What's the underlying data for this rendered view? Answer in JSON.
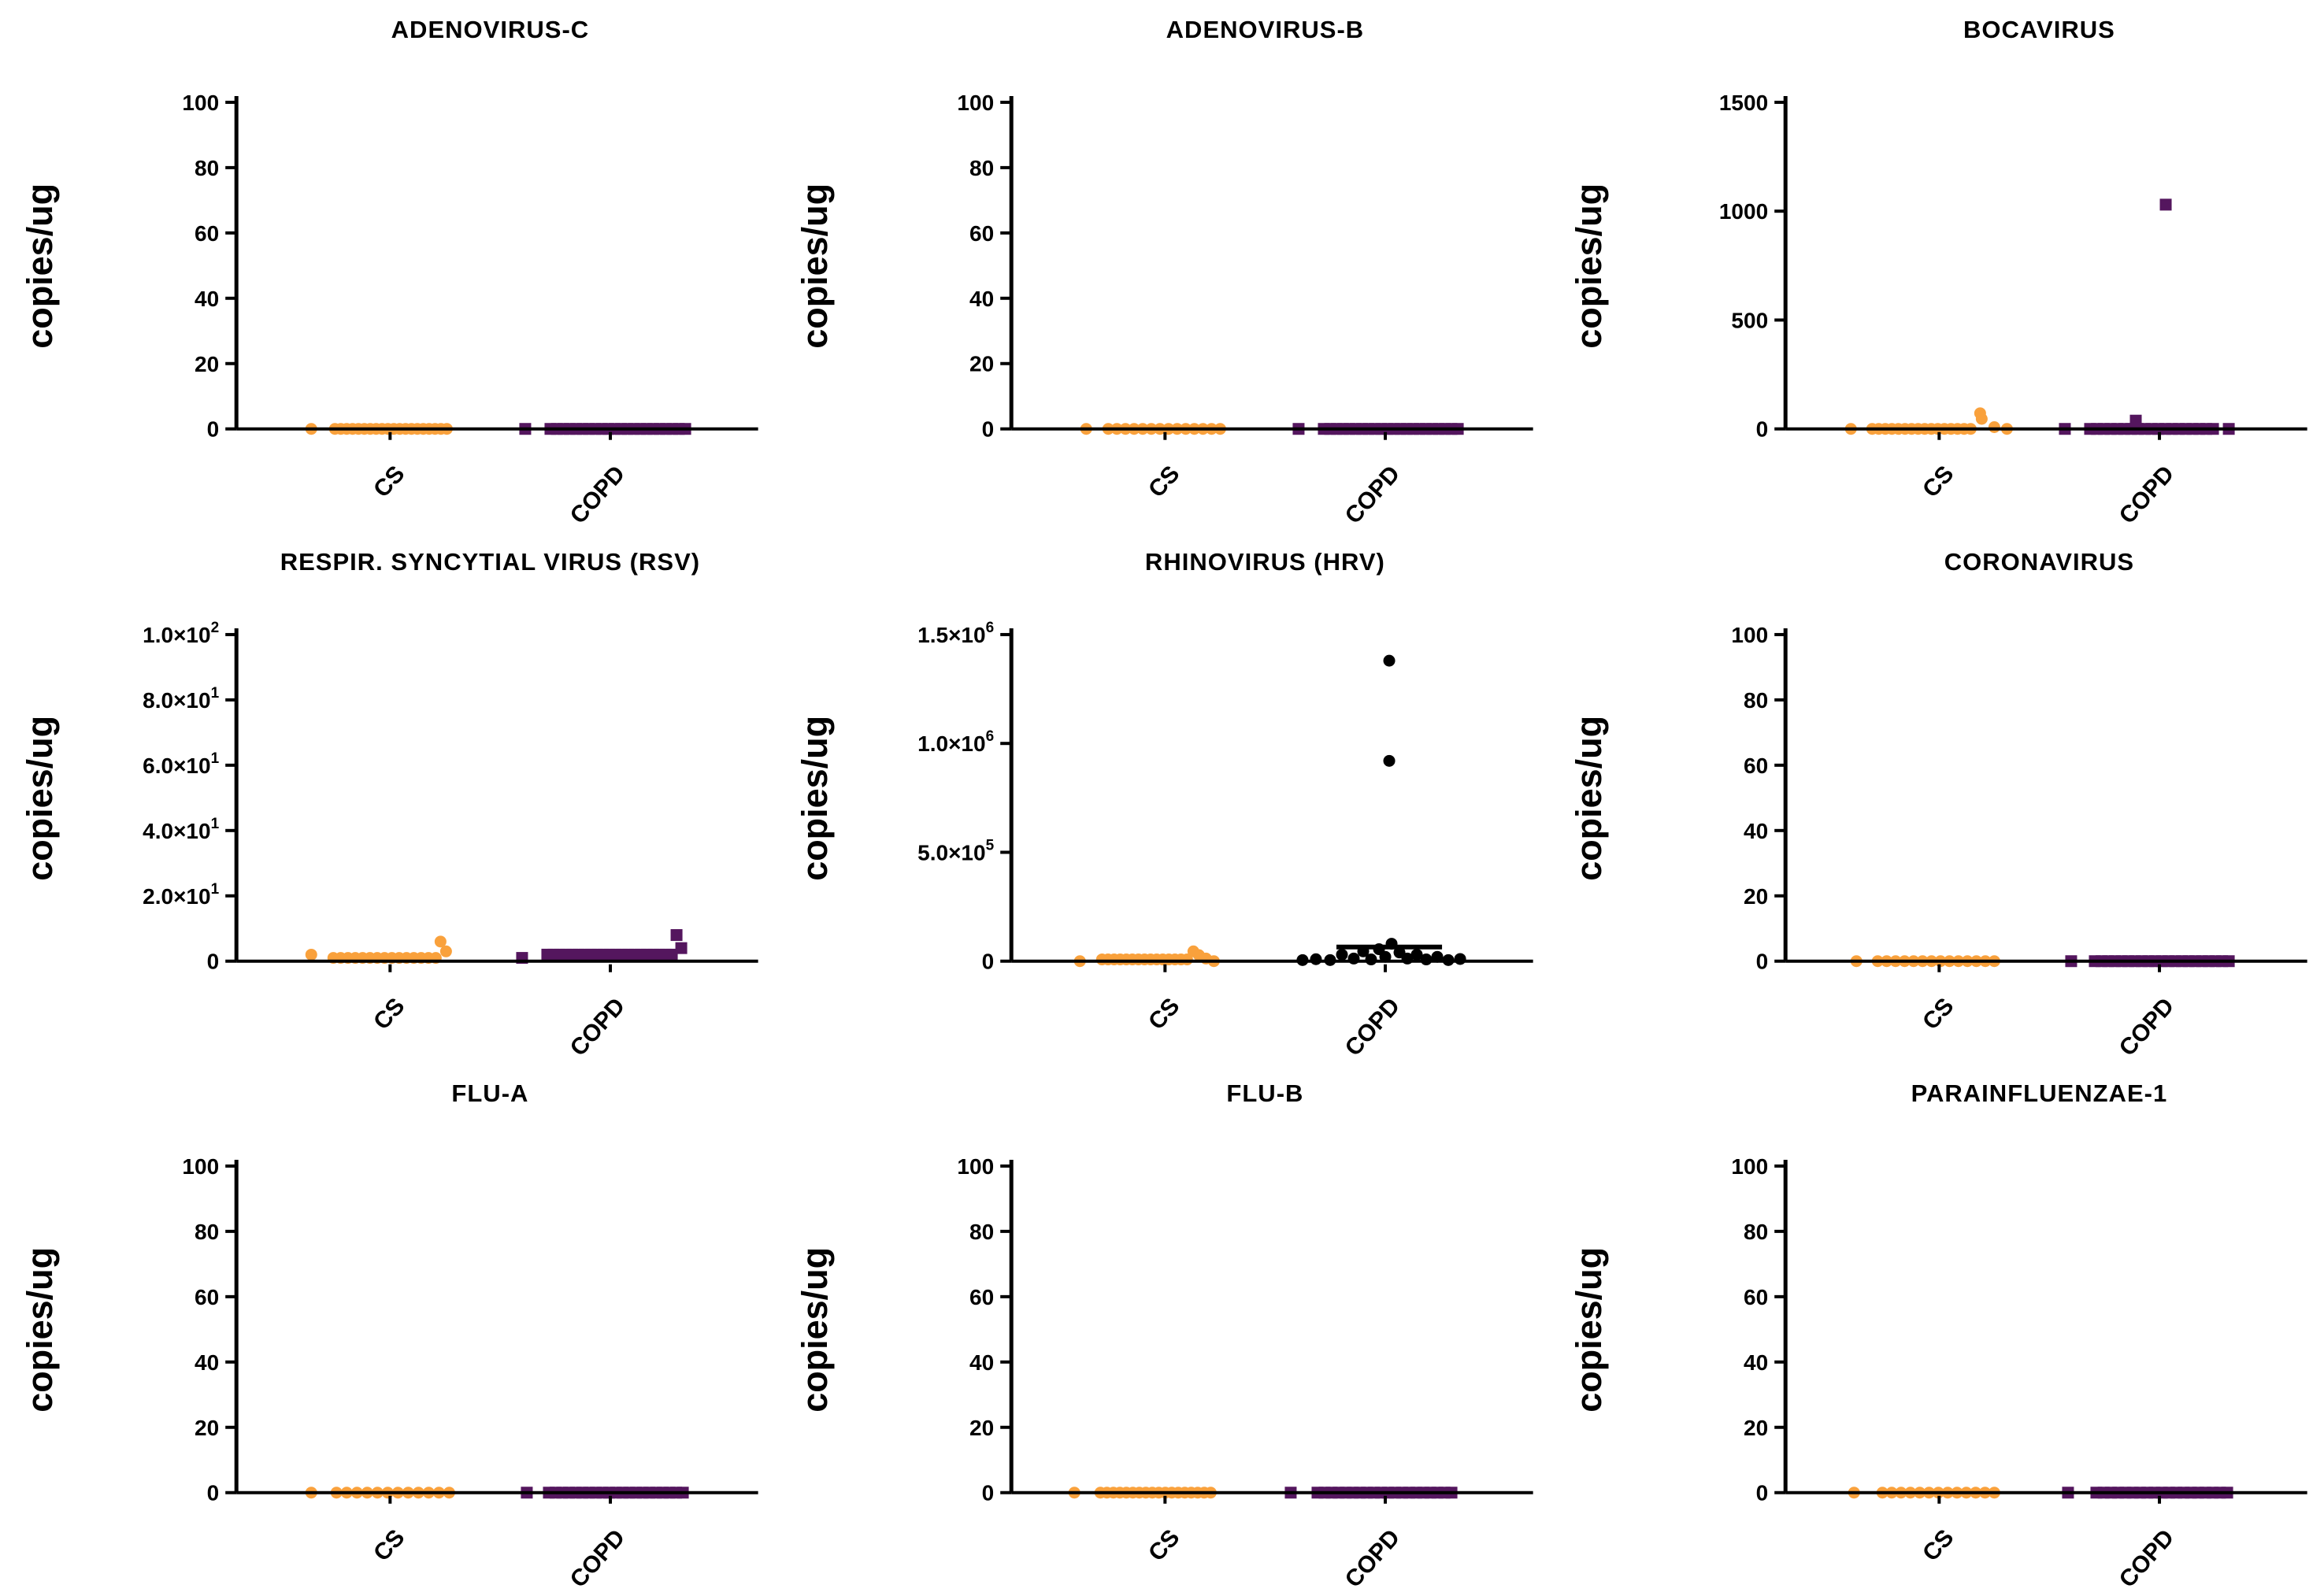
{
  "figure": {
    "background": "#ffffff",
    "grid": "3x3 panels, scatter plots of viral load by group"
  },
  "colors": {
    "cs_orange": "#F9A13C",
    "copd_purple": "#54165E",
    "hrv_copd_black": "#000000",
    "axis_black": "#000000"
  },
  "chart_data": [
    {
      "type": "scatter",
      "title": "ADENOVIRUS-C",
      "ylabel": "copies/ug",
      "xlabel": "",
      "categories": [
        "CS",
        "COPD"
      ],
      "ylim": [
        0,
        100
      ],
      "yticks": [
        {
          "v": 0,
          "label": "0"
        },
        {
          "v": 20,
          "label": "20"
        },
        {
          "v": 40,
          "label": "40"
        },
        {
          "v": 60,
          "label": "60"
        },
        {
          "v": 80,
          "label": "80"
        },
        {
          "v": 100,
          "label": "100"
        }
      ],
      "series": [
        {
          "name": "CS",
          "marker": "circle",
          "color": "#F9A13C",
          "groups": [
            {
              "pts": [
                [
                  -100,
                  0
                ]
              ]
            },
            {
              "row": {
                "n": 20,
                "from": -70,
                "to": 72,
                "y": 0
              }
            }
          ]
        },
        {
          "name": "COPD",
          "marker": "square",
          "color": "#54165E",
          "groups": [
            {
              "pts": [
                [
                  -108,
                  0
                ]
              ]
            },
            {
              "row": {
                "n": 22,
                "from": -76,
                "to": 95,
                "y": 0
              }
            }
          ]
        }
      ]
    },
    {
      "type": "scatter",
      "title": "ADENOVIRUS-B",
      "ylabel": "copies/ug",
      "xlabel": "",
      "categories": [
        "CS",
        "COPD"
      ],
      "ylim": [
        0,
        100
      ],
      "yticks": [
        {
          "v": 0,
          "label": "0"
        },
        {
          "v": 20,
          "label": "20"
        },
        {
          "v": 40,
          "label": "40"
        },
        {
          "v": 60,
          "label": "60"
        },
        {
          "v": 80,
          "label": "80"
        },
        {
          "v": 100,
          "label": "100"
        }
      ],
      "series": [
        {
          "name": "CS",
          "marker": "circle",
          "color": "#F9A13C",
          "groups": [
            {
              "pts": [
                [
                  -100,
                  0
                ]
              ]
            },
            {
              "row": {
                "n": 14,
                "from": -72,
                "to": 70,
                "y": 0
              }
            }
          ]
        },
        {
          "name": "COPD",
          "marker": "square",
          "color": "#54165E",
          "groups": [
            {
              "pts": [
                [
                  -110,
                  0
                ]
              ]
            },
            {
              "row": {
                "n": 22,
                "from": -78,
                "to": 92,
                "y": 0
              }
            }
          ]
        }
      ]
    },
    {
      "type": "scatter",
      "title": "BOCAVIRUS",
      "ylabel": "copies/ug",
      "xlabel": "",
      "categories": [
        "CS",
        "COPD"
      ],
      "ylim": [
        0,
        1500
      ],
      "yticks": [
        {
          "v": 0,
          "label": "0"
        },
        {
          "v": 500,
          "label": "500"
        },
        {
          "v": 1000,
          "label": "1000"
        },
        {
          "v": 1500,
          "label": "1500"
        }
      ],
      "series": [
        {
          "name": "CS",
          "marker": "circle",
          "color": "#F9A13C",
          "groups": [
            {
              "pts": [
                [
                  -112,
                  0
                ]
              ]
            },
            {
              "row": {
                "n": 16,
                "from": -85,
                "to": 40,
                "y": 0
              }
            },
            {
              "pts": [
                [
                  52,
                  72
                ],
                [
                  54,
                  46
                ],
                [
                  70,
                  8
                ],
                [
                  86,
                  0
                ]
              ]
            }
          ]
        },
        {
          "name": "COPD",
          "marker": "square",
          "color": "#54165E",
          "groups": [
            {
              "pts": [
                [
                  -120,
                  0
                ]
              ]
            },
            {
              "row": {
                "n": 19,
                "from": -88,
                "to": 68,
                "y": 0
              }
            },
            {
              "pts": [
                [
                  -30,
                  38
                ],
                [
                  88,
                  0
                ],
                [
                  8,
                  1030
                ]
              ]
            }
          ]
        }
      ]
    },
    {
      "type": "scatter",
      "title": "RESPIR. SYNCYTIAL VIRUS (RSV)",
      "ylabel": "copies/ug",
      "xlabel": "",
      "categories": [
        "CS",
        "COPD"
      ],
      "ylim": [
        0,
        100
      ],
      "yticks": [
        {
          "v": 0,
          "label": "0"
        },
        {
          "v": 20,
          "label": "2.0×10^1"
        },
        {
          "v": 40,
          "label": "4.0×10^1"
        },
        {
          "v": 60,
          "label": "6.0×10^1"
        },
        {
          "v": 80,
          "label": "8.0×10^1"
        },
        {
          "v": 100,
          "label": "1.0×10^2"
        }
      ],
      "series": [
        {
          "name": "CS",
          "marker": "circle",
          "color": "#F9A13C",
          "groups": [
            {
              "pts": [
                [
                  -100,
                  2
                ]
              ]
            },
            {
              "row": {
                "n": 15,
                "from": -72,
                "to": 58,
                "y": 1
              }
            },
            {
              "pts": [
                [
                  64,
                  6
                ],
                [
                  71,
                  3
                ]
              ]
            }
          ]
        },
        {
          "name": "COPD",
          "marker": "square",
          "color": "#54165E",
          "groups": [
            {
              "pts": [
                [
                  -112,
                  1
                ]
              ]
            },
            {
              "row": {
                "n": 21,
                "from": -80,
                "to": 78,
                "y": 2
              }
            },
            {
              "pts": [
                [
                  84,
                  8
                ],
                [
                  90,
                  4
                ]
              ]
            }
          ]
        }
      ]
    },
    {
      "type": "scatter",
      "title": "RHINOVIRUS (HRV)",
      "ylabel": "copies/ug",
      "xlabel": "",
      "categories": [
        "CS",
        "COPD"
      ],
      "ylim": [
        0,
        1500000
      ],
      "yticks": [
        {
          "v": 0,
          "label": "0"
        },
        {
          "v": 500000,
          "label": "5.0×10^5"
        },
        {
          "v": 1000000,
          "label": "1.0×10^6"
        },
        {
          "v": 1500000,
          "label": "1.5×10^6"
        }
      ],
      "series": [
        {
          "name": "CS",
          "marker": "circle",
          "color": "#F9A13C",
          "groups": [
            {
              "pts": [
                [
                  -108,
                  0
                ]
              ]
            },
            {
              "row": {
                "n": 15,
                "from": -80,
                "to": 28,
                "y": 8000
              }
            },
            {
              "pts": [
                [
                  36,
                  45000
                ],
                [
                  43,
                  28000
                ],
                [
                  52,
                  12000
                ],
                [
                  62,
                  0
                ]
              ]
            }
          ]
        },
        {
          "name": "COPD",
          "marker": "circle",
          "color": "#000000",
          "groups": [
            {
              "pts": [
                [
                  -105,
                  5000
                ],
                [
                  -88,
                  9000
                ],
                [
                  -70,
                  5000
                ],
                [
                  -55,
                  30000
                ],
                [
                  -40,
                  12000
                ],
                [
                  -28,
                  45000
                ],
                [
                  -18,
                  8000
                ],
                [
                  -8,
                  55000
                ],
                [
                  0,
                  20000
                ],
                [
                  8,
                  80000
                ],
                [
                  18,
                  40000
                ],
                [
                  28,
                  12000
                ],
                [
                  40,
                  30000
                ],
                [
                  52,
                  8000
                ],
                [
                  66,
                  20000
                ],
                [
                  80,
                  5000
                ],
                [
                  95,
                  10000
                ],
                [
                  5,
                  1380000
                ],
                [
                  5,
                  920000
                ]
              ]
            }
          ]
        }
      ],
      "median": {
        "series": "COPD",
        "value": 65000,
        "from": -62,
        "to": 72
      }
    },
    {
      "type": "scatter",
      "title": "CORONAVIRUS",
      "ylabel": "copies/ug",
      "xlabel": "",
      "categories": [
        "CS",
        "COPD"
      ],
      "ylim": [
        0,
        100
      ],
      "yticks": [
        {
          "v": 0,
          "label": "0"
        },
        {
          "v": 20,
          "label": "20"
        },
        {
          "v": 40,
          "label": "40"
        },
        {
          "v": 60,
          "label": "60"
        },
        {
          "v": 80,
          "label": "80"
        },
        {
          "v": 100,
          "label": "100"
        }
      ],
      "series": [
        {
          "name": "CS",
          "marker": "circle",
          "color": "#F9A13C",
          "groups": [
            {
              "pts": [
                [
                  -105,
                  0
                ]
              ]
            },
            {
              "row": {
                "n": 14,
                "from": -78,
                "to": 70,
                "y": 0
              }
            }
          ]
        },
        {
          "name": "COPD",
          "marker": "square",
          "color": "#54165E",
          "groups": [
            {
              "pts": [
                [
                  -112,
                  0
                ]
              ]
            },
            {
              "row": {
                "n": 21,
                "from": -82,
                "to": 88,
                "y": 0
              }
            }
          ]
        }
      ]
    },
    {
      "type": "scatter",
      "title": "FLU-A",
      "ylabel": "copies/ug",
      "xlabel": "",
      "categories": [
        "CS",
        "COPD"
      ],
      "ylim": [
        0,
        100
      ],
      "yticks": [
        {
          "v": 0,
          "label": "0"
        },
        {
          "v": 20,
          "label": "20"
        },
        {
          "v": 40,
          "label": "40"
        },
        {
          "v": 60,
          "label": "60"
        },
        {
          "v": 80,
          "label": "80"
        },
        {
          "v": 100,
          "label": "100"
        }
      ],
      "series": [
        {
          "name": "CS",
          "marker": "circle",
          "color": "#F9A13C",
          "groups": [
            {
              "pts": [
                [
                  -100,
                  0
                ]
              ]
            },
            {
              "row": {
                "n": 12,
                "from": -68,
                "to": 75,
                "y": 0
              }
            }
          ]
        },
        {
          "name": "COPD",
          "marker": "square",
          "color": "#54165E",
          "groups": [
            {
              "pts": [
                [
                  -106,
                  0
                ]
              ]
            },
            {
              "row": {
                "n": 21,
                "from": -78,
                "to": 92,
                "y": 0
              }
            }
          ]
        }
      ]
    },
    {
      "type": "scatter",
      "title": "FLU-B",
      "ylabel": "copies/ug",
      "xlabel": "",
      "categories": [
        "CS",
        "COPD"
      ],
      "ylim": [
        0,
        100
      ],
      "yticks": [
        {
          "v": 0,
          "label": "0"
        },
        {
          "v": 20,
          "label": "20"
        },
        {
          "v": 40,
          "label": "40"
        },
        {
          "v": 60,
          "label": "60"
        },
        {
          "v": 80,
          "label": "80"
        },
        {
          "v": 100,
          "label": "100"
        }
      ],
      "series": [
        {
          "name": "CS",
          "marker": "circle",
          "color": "#F9A13C",
          "groups": [
            {
              "pts": [
                [
                  -115,
                  0
                ]
              ]
            },
            {
              "row": {
                "n": 18,
                "from": -82,
                "to": 58,
                "y": 0
              }
            }
          ]
        },
        {
          "name": "COPD",
          "marker": "square",
          "color": "#54165E",
          "groups": [
            {
              "pts": [
                [
                  -120,
                  0
                ]
              ]
            },
            {
              "row": {
                "n": 20,
                "from": -86,
                "to": 84,
                "y": 0
              }
            }
          ]
        }
      ]
    },
    {
      "type": "scatter",
      "title": "PARAINFLUENZAE-1",
      "ylabel": "copies/ug",
      "xlabel": "",
      "categories": [
        "CS",
        "COPD"
      ],
      "ylim": [
        0,
        100
      ],
      "yticks": [
        {
          "v": 0,
          "label": "0"
        },
        {
          "v": 20,
          "label": "20"
        },
        {
          "v": 40,
          "label": "40"
        },
        {
          "v": 60,
          "label": "60"
        },
        {
          "v": 80,
          "label": "80"
        },
        {
          "v": 100,
          "label": "100"
        }
      ],
      "series": [
        {
          "name": "CS",
          "marker": "circle",
          "color": "#F9A13C",
          "groups": [
            {
              "pts": [
                [
                  -108,
                  0
                ]
              ]
            },
            {
              "row": {
                "n": 13,
                "from": -72,
                "to": 70,
                "y": 0
              }
            }
          ]
        },
        {
          "name": "COPD",
          "marker": "square",
          "color": "#54165E",
          "groups": [
            {
              "pts": [
                [
                  -116,
                  0
                ]
              ]
            },
            {
              "row": {
                "n": 19,
                "from": -80,
                "to": 86,
                "y": 0
              }
            }
          ]
        }
      ]
    }
  ]
}
